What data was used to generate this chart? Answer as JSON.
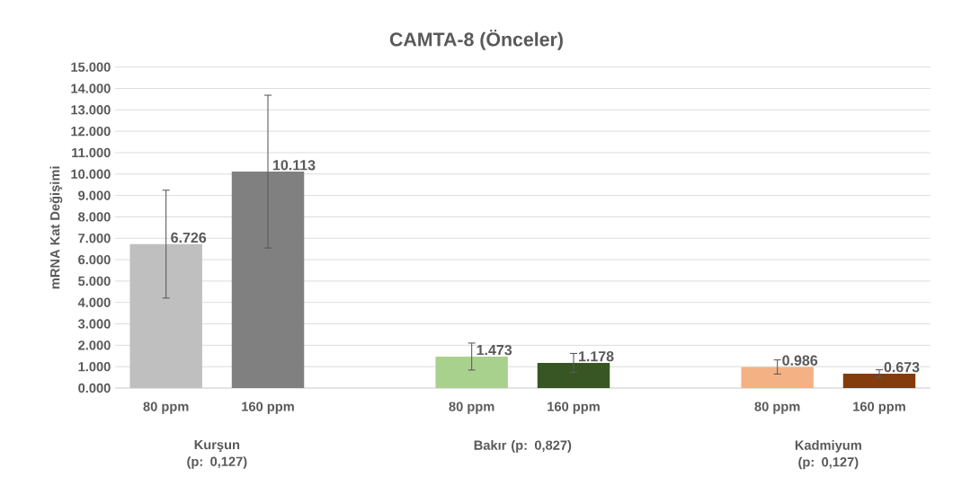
{
  "chart_data": {
    "type": "bar",
    "title": "CAMTA-8 (Önceler)",
    "ylabel": "mRNA Kat Değişimi",
    "categories": [
      "80 ppm",
      "160 ppm",
      "80 ppm",
      "160 ppm",
      "80 ppm",
      "160 ppm"
    ],
    "values": [
      6.726,
      10.113,
      1.473,
      1.178,
      0.986,
      0.673
    ],
    "colors": [
      "#bfbfbf",
      "#808080",
      "#a9d18e",
      "#375623",
      "#f4b183",
      "#843c0c"
    ],
    "errors": [
      2.52,
      3.57,
      0.63,
      0.44,
      0.33,
      0.18
    ],
    "value_labels": [
      "6.726",
      "10.113",
      "1.473",
      "1.178",
      "0.986",
      "0.673"
    ],
    "ylim": [
      0,
      15
    ],
    "yticks": [
      {
        "value": 0,
        "label": "0.000"
      },
      {
        "value": 1,
        "label": "1.000"
      },
      {
        "value": 2,
        "label": "2.000"
      },
      {
        "value": 3,
        "label": "3.000"
      },
      {
        "value": 4,
        "label": "4.000"
      },
      {
        "value": 5,
        "label": "5.000"
      },
      {
        "value": 6,
        "label": "6.000"
      },
      {
        "value": 7,
        "label": "7.000"
      },
      {
        "value": 8,
        "label": "8.000"
      },
      {
        "value": 9,
        "label": "9.000"
      },
      {
        "value": 10,
        "label": "10.000"
      },
      {
        "value": 11,
        "label": "11.000"
      },
      {
        "value": 12,
        "label": "12.000"
      },
      {
        "value": 13,
        "label": "13.000"
      },
      {
        "value": 14,
        "label": "14.000"
      },
      {
        "value": 15,
        "label": "15.000"
      }
    ],
    "grid": "y",
    "annotations": [
      "Kurşun (p: 0,127)",
      "Bakır (p: 0,827)",
      "Kadmiyum (p: 0,127)"
    ]
  }
}
